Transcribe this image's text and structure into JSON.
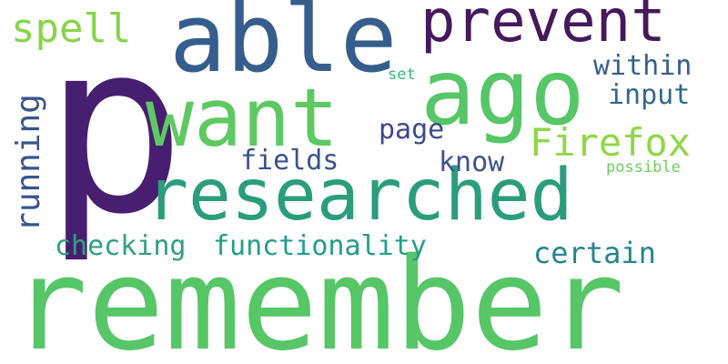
{
  "words": {
    "p": {
      "text": "p",
      "color": "#481f70"
    },
    "remember": {
      "text": "remember",
      "color": "#56c667"
    },
    "researched": {
      "text": "researched",
      "color": "#2a9d7c"
    },
    "want": {
      "text": "want",
      "color": "#5ec962"
    },
    "ago": {
      "text": "ago",
      "color": "#56c667"
    },
    "able": {
      "text": "able",
      "color": "#355e8d"
    },
    "prevent": {
      "text": "prevent",
      "color": "#46185c"
    },
    "firefox": {
      "text": "Firefox",
      "color": "#8fd744"
    },
    "spell": {
      "text": "spell",
      "color": "#86d549"
    },
    "running": {
      "text": "running",
      "color": "#3a548c"
    },
    "within": {
      "text": "within",
      "color": "#355f8d"
    },
    "input": {
      "text": "input",
      "color": "#31688e"
    },
    "page": {
      "text": "page",
      "color": "#3e4989"
    },
    "know": {
      "text": "know",
      "color": "#3b528b"
    },
    "fields": {
      "text": "fields",
      "color": "#3b528b"
    },
    "possible": {
      "text": "possible",
      "color": "#6ccd5a"
    },
    "set": {
      "text": "set",
      "color": "#34b679"
    },
    "checking": {
      "text": "checking",
      "color": "#2ea17f"
    },
    "functionality": {
      "text": "functionality",
      "color": "#1f9e89"
    },
    "certain": {
      "text": "certain",
      "color": "#25848e"
    }
  }
}
